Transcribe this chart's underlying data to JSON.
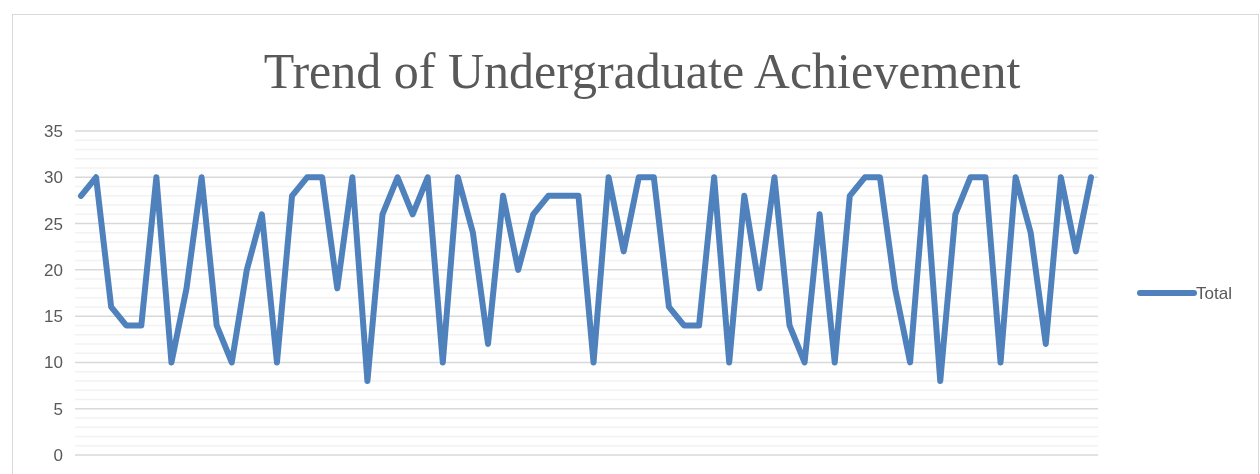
{
  "chart_data": {
    "type": "line",
    "title": "Trend of Undergraduate Achievement",
    "categories": [
      null,
      null,
      null,
      null,
      null,
      null,
      null,
      null,
      null,
      null,
      null,
      null,
      null,
      null,
      null,
      null,
      null,
      null,
      null,
      null,
      null,
      null,
      null,
      null,
      null,
      null,
      null,
      null,
      null,
      null,
      null,
      null,
      null,
      null,
      null,
      null,
      null,
      null,
      null,
      null,
      null,
      null,
      null,
      null,
      null,
      null,
      null,
      null,
      null,
      null,
      null,
      null,
      null,
      null,
      null,
      null,
      null,
      null,
      null,
      null,
      null,
      null,
      null,
      null,
      null,
      null,
      null,
      null
    ],
    "series": [
      {
        "name": "Total",
        "color": "#4f81bd",
        "values": [
          28,
          30,
          16,
          14,
          14,
          30,
          10,
          18,
          30,
          14,
          10,
          20,
          26,
          10,
          28,
          30,
          30,
          18,
          30,
          8,
          26,
          30,
          26,
          30,
          10,
          30,
          24,
          12,
          28,
          20,
          26,
          28,
          28,
          28,
          10,
          30,
          22,
          30,
          30,
          16,
          14,
          14,
          30,
          10,
          28,
          18,
          30,
          14,
          10,
          26,
          10,
          28,
          30,
          30,
          18,
          10,
          30,
          8,
          26,
          30,
          30,
          10,
          30,
          24,
          12,
          30,
          22,
          30
        ]
      }
    ],
    "ylim": [
      0,
      35
    ],
    "yticks": [
      0,
      5,
      10,
      15,
      20,
      25,
      30,
      35
    ],
    "grid": true,
    "legend": "right",
    "marker": "none",
    "line_style": "solid"
  }
}
